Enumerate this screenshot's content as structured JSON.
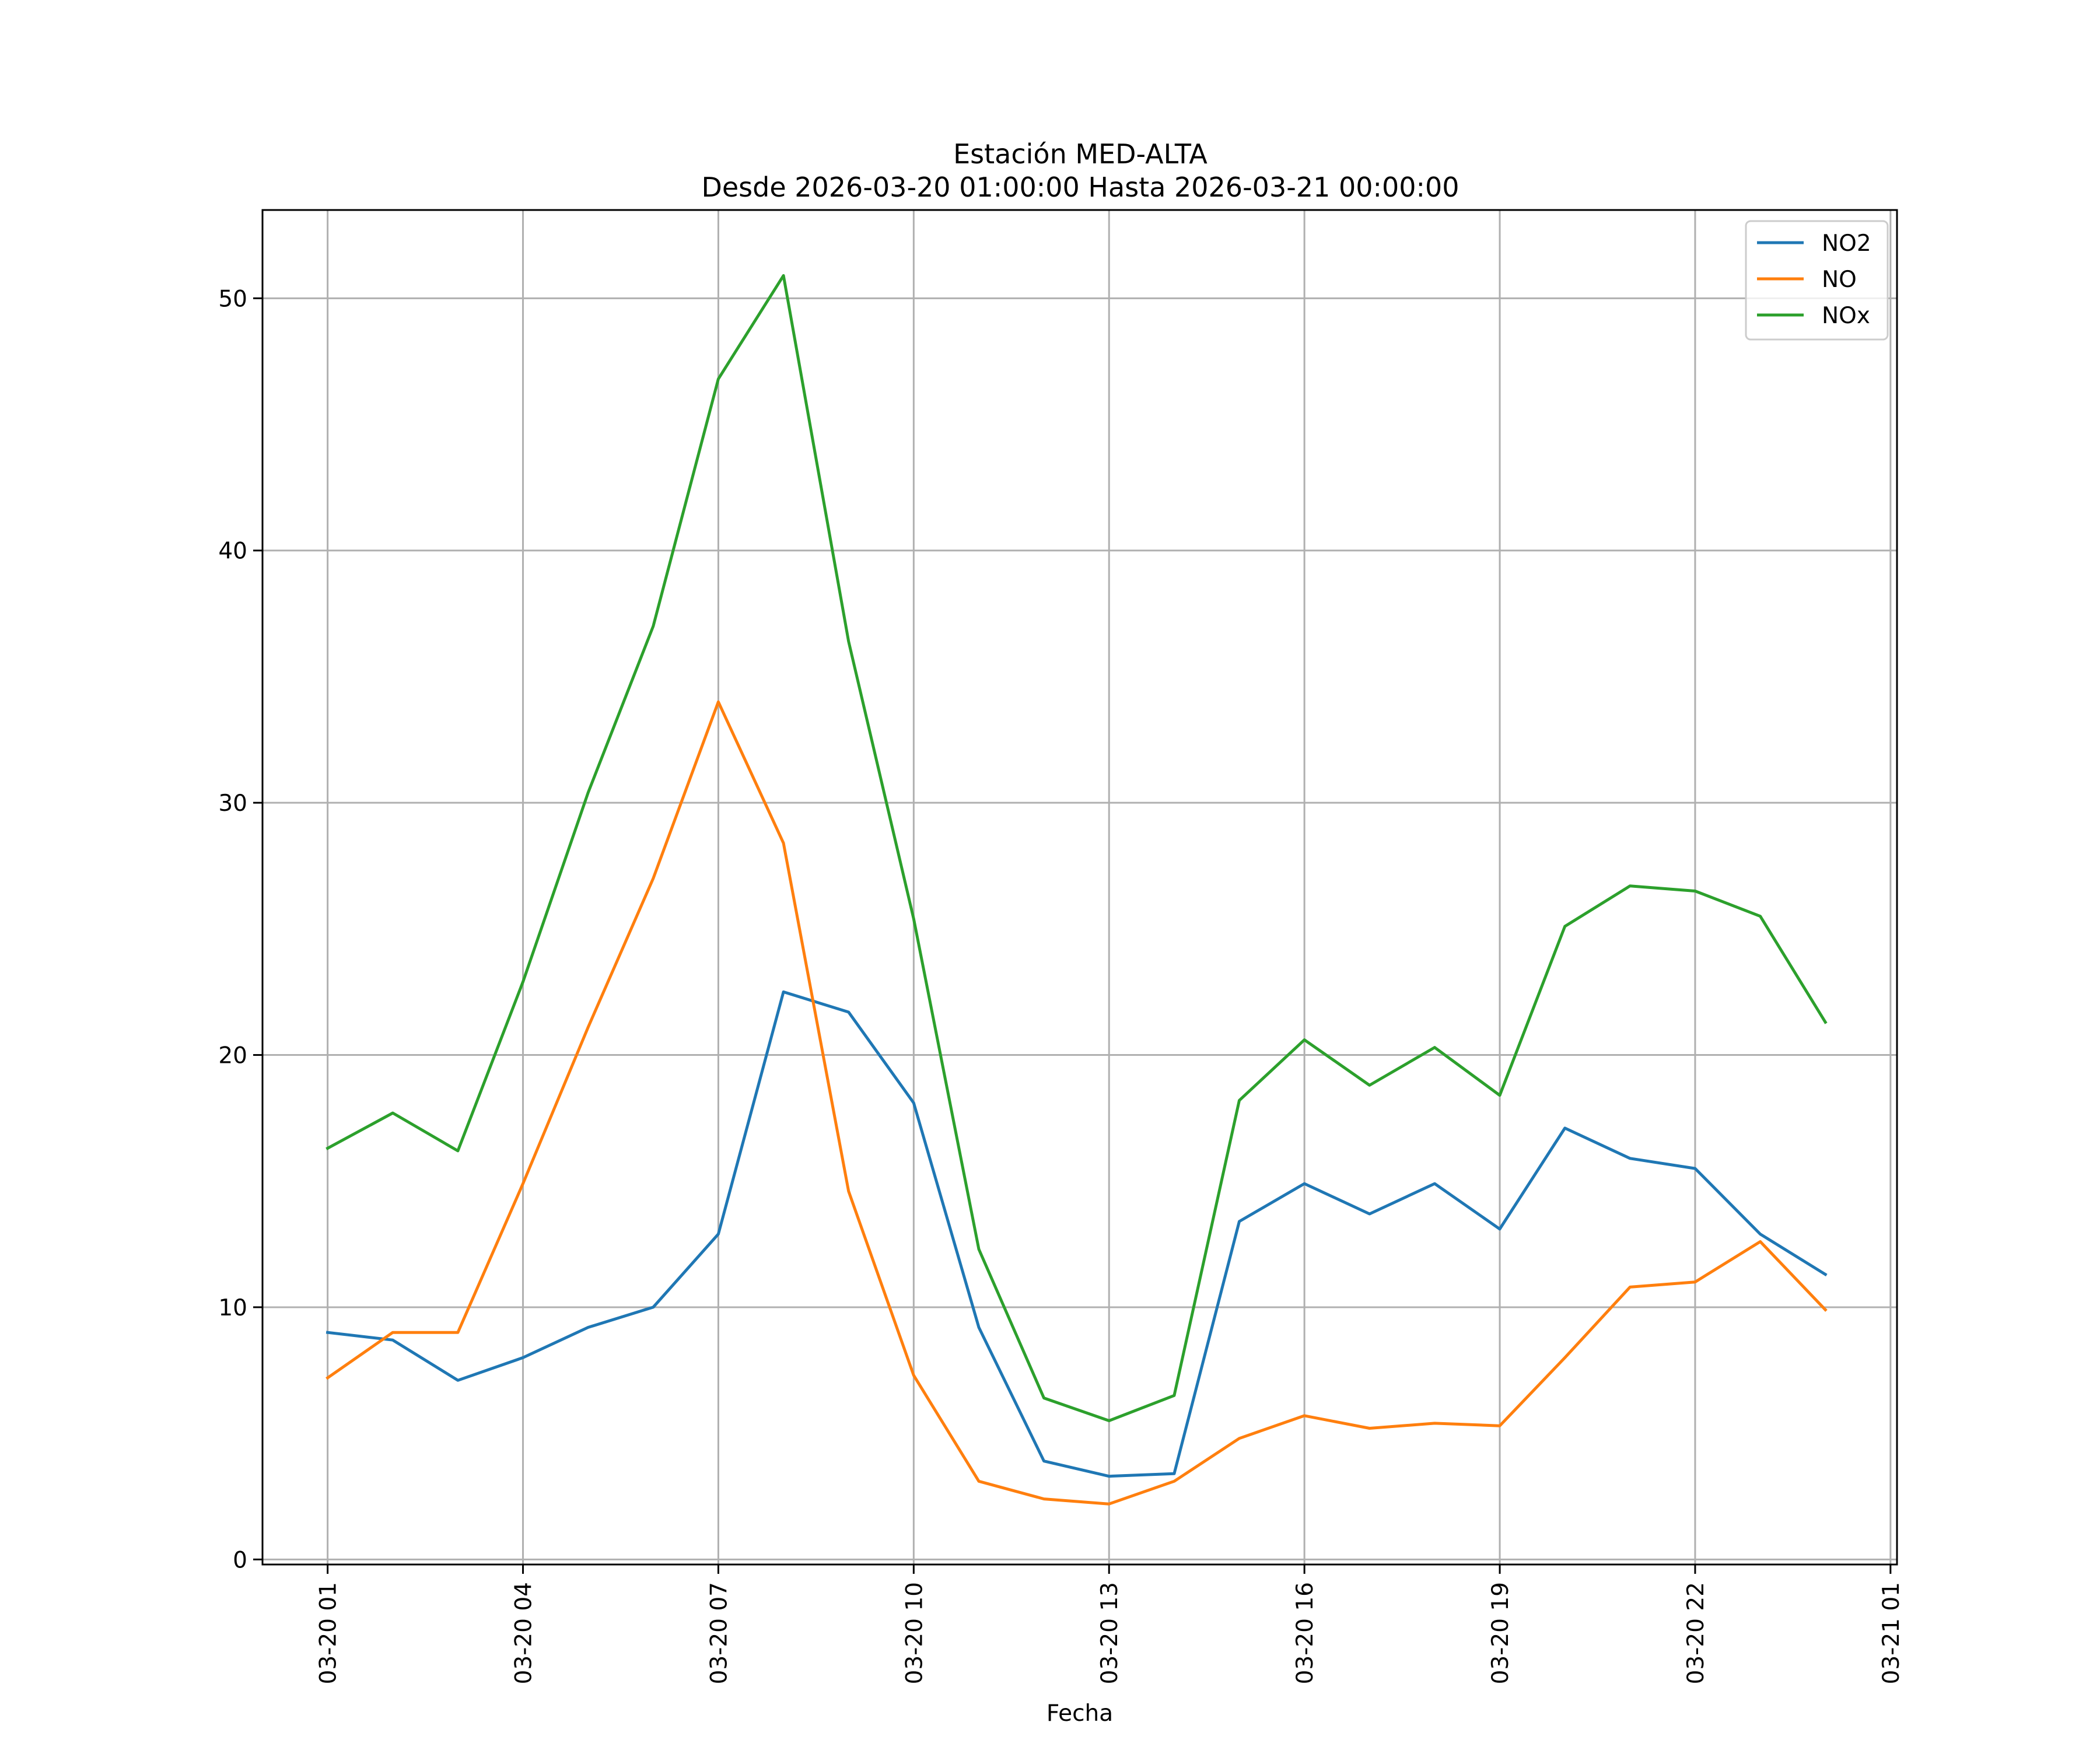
{
  "chart_data": {
    "type": "line",
    "title": "Estación MED-ALTA",
    "subtitle": "Desde 2026-03-20 01:00:00 Hasta 2026-03-21 00:00:00",
    "xlabel": "Fecha",
    "ylabel": "",
    "ylim": [
      -0.2,
      53.5
    ],
    "grid": true,
    "legend_position": "top-right",
    "x": [
      "2026-03-20 01:00",
      "2026-03-20 02:00",
      "2026-03-20 03:00",
      "2026-03-20 04:00",
      "2026-03-20 05:00",
      "2026-03-20 06:00",
      "2026-03-20 07:00",
      "2026-03-20 08:00",
      "2026-03-20 09:00",
      "2026-03-20 10:00",
      "2026-03-20 11:00",
      "2026-03-20 12:00",
      "2026-03-20 13:00",
      "2026-03-20 14:00",
      "2026-03-20 15:00",
      "2026-03-20 16:00",
      "2026-03-20 17:00",
      "2026-03-20 18:00",
      "2026-03-20 19:00",
      "2026-03-20 20:00",
      "2026-03-20 21:00",
      "2026-03-20 22:00",
      "2026-03-20 23:00",
      "2026-03-21 00:00"
    ],
    "xlim": [
      "2026-03-20 00:00",
      "2026-03-21 01:06"
    ],
    "x_ticks": [
      {
        "value": "2026-03-20 01:00",
        "label": "03-20 01"
      },
      {
        "value": "2026-03-20 04:00",
        "label": "03-20 04"
      },
      {
        "value": "2026-03-20 07:00",
        "label": "03-20 07"
      },
      {
        "value": "2026-03-20 10:00",
        "label": "03-20 10"
      },
      {
        "value": "2026-03-20 13:00",
        "label": "03-20 13"
      },
      {
        "value": "2026-03-20 16:00",
        "label": "03-20 16"
      },
      {
        "value": "2026-03-20 19:00",
        "label": "03-20 19"
      },
      {
        "value": "2026-03-20 22:00",
        "label": "03-20 22"
      },
      {
        "value": "2026-03-21 01:00",
        "label": "03-21 01"
      }
    ],
    "y_ticks": [
      {
        "value": 0,
        "label": "0"
      },
      {
        "value": 10,
        "label": "10"
      },
      {
        "value": 20,
        "label": "20"
      },
      {
        "value": 30,
        "label": "30"
      },
      {
        "value": 40,
        "label": "40"
      },
      {
        "value": 50,
        "label": "50"
      }
    ],
    "series": [
      {
        "name": "NO2",
        "color": "#1f77b4",
        "values": [
          9.0,
          8.7,
          7.1,
          8.0,
          9.2,
          10.0,
          12.9,
          22.5,
          21.7,
          18.1,
          9.2,
          3.9,
          3.3,
          3.4,
          13.4,
          14.9,
          13.7,
          14.9,
          13.1,
          17.1,
          15.9,
          15.5,
          12.9,
          11.3
        ]
      },
      {
        "name": "NO",
        "color": "#ff7f0e",
        "values": [
          7.2,
          9.0,
          9.0,
          14.9,
          21.1,
          27.0,
          34.0,
          28.4,
          14.6,
          7.3,
          3.1,
          2.4,
          2.2,
          3.1,
          4.8,
          5.7,
          5.2,
          5.4,
          5.3,
          8.0,
          10.8,
          11.0,
          12.6,
          9.9
        ]
      },
      {
        "name": "NOx",
        "color": "#2ca02c",
        "values": [
          16.3,
          17.7,
          16.2,
          22.9,
          30.4,
          37.0,
          46.8,
          50.9,
          36.4,
          25.4,
          12.3,
          6.4,
          5.5,
          6.5,
          18.2,
          20.6,
          18.8,
          20.3,
          18.4,
          25.1,
          26.7,
          26.5,
          25.5,
          21.3
        ]
      }
    ]
  }
}
